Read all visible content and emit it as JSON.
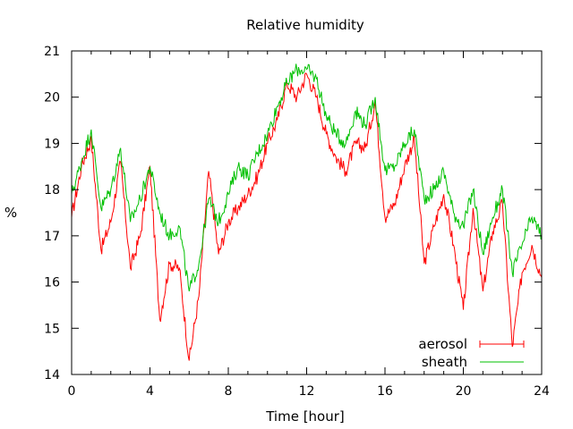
{
  "chart_data": {
    "type": "line",
    "title": "Relative humidity",
    "xlabel": "Time [hour]",
    "ylabel": "%",
    "xlim": [
      0,
      24
    ],
    "ylim": [
      14,
      21
    ],
    "xticks": [
      0,
      4,
      8,
      12,
      16,
      20,
      24
    ],
    "yticks": [
      14,
      15,
      16,
      17,
      18,
      19,
      20,
      21
    ],
    "grid": false,
    "legend_position": "bottom-right",
    "series": [
      {
        "name": "aerosol",
        "color": "#ff0000",
        "x": [
          0,
          0.5,
          1,
          1.5,
          2,
          2.5,
          3,
          3.5,
          4,
          4.5,
          5,
          5.5,
          6,
          6.5,
          7,
          7.5,
          8,
          8.5,
          9,
          9.5,
          10,
          10.5,
          11,
          11.5,
          12,
          12.5,
          13,
          13.5,
          14,
          14.5,
          15,
          15.5,
          16,
          16.5,
          17,
          17.5,
          18,
          18.5,
          19,
          19.5,
          20,
          20.5,
          21,
          21.5,
          22,
          22.5,
          23,
          23.5,
          24
        ],
        "values": [
          17.4,
          18.5,
          19.1,
          16.7,
          17.3,
          18.6,
          16.3,
          17.0,
          18.5,
          15.2,
          16.4,
          16.3,
          14.3,
          15.7,
          18.4,
          16.6,
          17.3,
          17.6,
          17.9,
          18.3,
          19.0,
          19.5,
          20.3,
          20.0,
          20.5,
          20.0,
          19.2,
          18.7,
          18.4,
          19.0,
          18.9,
          19.9,
          17.4,
          17.7,
          18.5,
          19.1,
          16.4,
          17.2,
          17.9,
          16.8,
          15.4,
          17.6,
          15.8,
          17.1,
          17.7,
          14.6,
          16.2,
          16.8,
          16.1
        ]
      },
      {
        "name": "sheath",
        "color": "#00c000",
        "x": [
          0,
          0.5,
          1,
          1.5,
          2,
          2.5,
          3,
          3.5,
          4,
          4.5,
          5,
          5.5,
          6,
          6.5,
          7,
          7.5,
          8,
          8.5,
          9,
          9.5,
          10,
          10.5,
          11,
          11.5,
          12,
          12.5,
          13,
          13.5,
          14,
          14.5,
          15,
          15.5,
          16,
          16.5,
          17,
          17.5,
          18,
          18.5,
          19,
          19.5,
          20,
          20.5,
          21,
          21.5,
          22,
          22.5,
          23,
          23.5,
          24
        ],
        "values": [
          17.9,
          18.6,
          19.3,
          17.6,
          18.0,
          18.9,
          17.3,
          17.8,
          18.5,
          17.5,
          17.0,
          17.2,
          15.8,
          16.4,
          17.8,
          17.3,
          17.9,
          18.5,
          18.3,
          18.8,
          19.2,
          19.8,
          20.3,
          20.6,
          20.6,
          20.4,
          19.6,
          19.2,
          19.0,
          19.7,
          19.4,
          20.0,
          18.4,
          18.5,
          19.0,
          19.3,
          17.8,
          18.0,
          18.4,
          17.5,
          17.2,
          18.0,
          16.6,
          17.4,
          18.0,
          16.2,
          16.8,
          17.4,
          17.0
        ]
      }
    ]
  }
}
